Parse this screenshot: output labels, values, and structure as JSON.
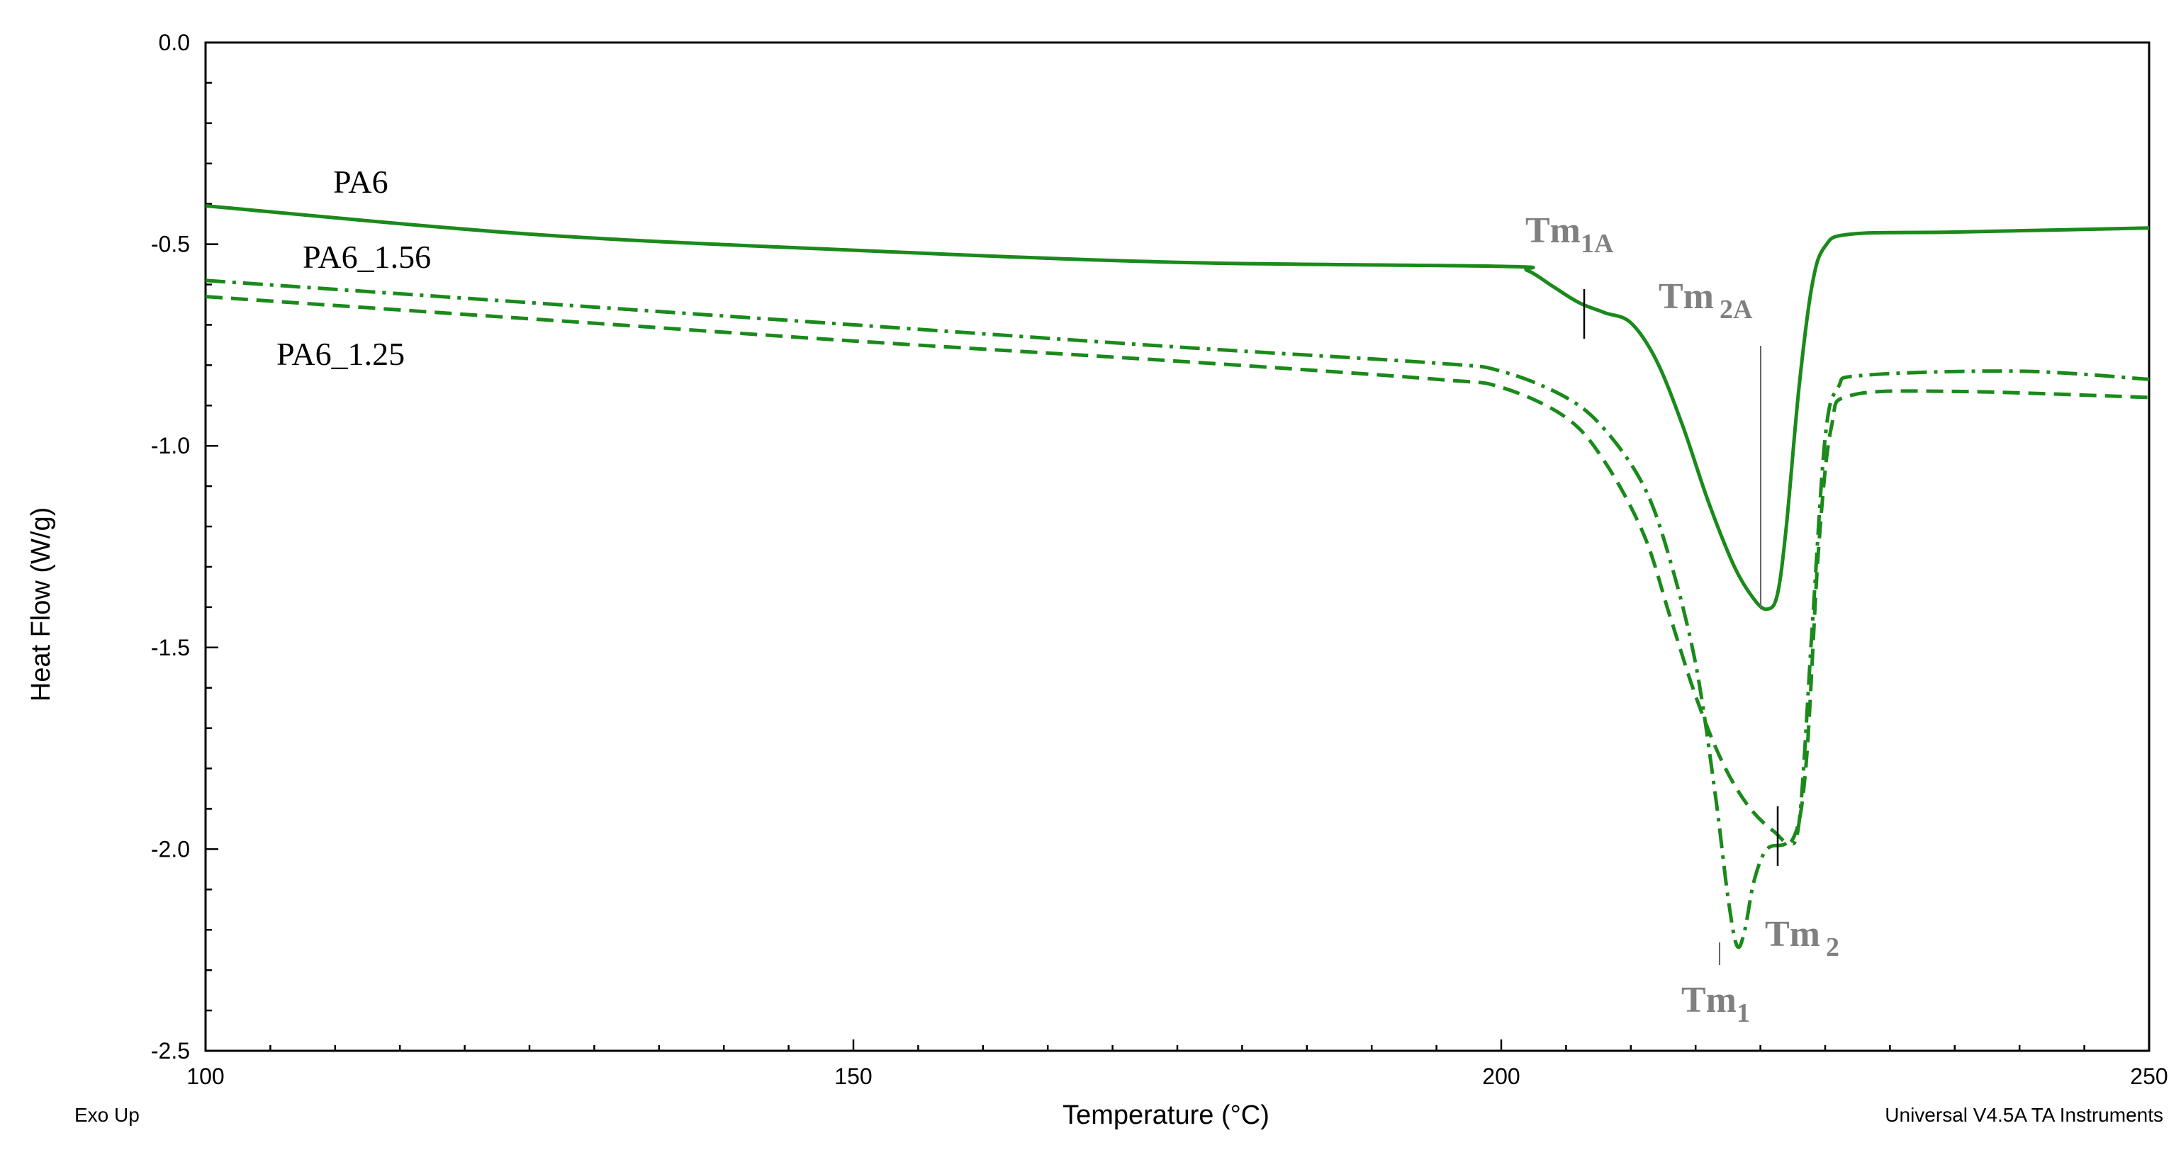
{
  "chart_data": {
    "type": "line",
    "title": "",
    "xlabel": "Temperature (°C)",
    "ylabel": "Heat Flow (W/g)",
    "xlim": [
      100,
      250
    ],
    "ylim": [
      -2.5,
      0.0
    ],
    "x_ticks": [
      100,
      150,
      200,
      250
    ],
    "y_ticks": [
      0.0,
      -0.5,
      -1.0,
      -1.5,
      -2.0,
      -2.5
    ],
    "x_tick_labels": [
      "100",
      "150",
      "200",
      "250"
    ],
    "y_tick_labels": [
      "0.0",
      "-0.5",
      "-1.0",
      "-1.5",
      "-2.0",
      "-2.5"
    ],
    "grid": false,
    "line_color": "#1a8a1a",
    "series": [
      {
        "name": "PA6",
        "style": "solid",
        "points": [
          [
            100,
            -0.405
          ],
          [
            125,
            -0.475
          ],
          [
            150,
            -0.515
          ],
          [
            175,
            -0.545
          ],
          [
            200,
            -0.555
          ],
          [
            202,
            -0.565
          ],
          [
            204,
            -0.605
          ],
          [
            206,
            -0.645
          ],
          [
            208,
            -0.67
          ],
          [
            210,
            -0.695
          ],
          [
            212,
            -0.79
          ],
          [
            214,
            -0.95
          ],
          [
            216,
            -1.14
          ],
          [
            218,
            -1.3
          ],
          [
            219.5,
            -1.38
          ],
          [
            220.5,
            -1.405
          ],
          [
            221.3,
            -1.37
          ],
          [
            222,
            -1.2
          ],
          [
            223,
            -0.85
          ],
          [
            224,
            -0.6
          ],
          [
            225,
            -0.505
          ],
          [
            227,
            -0.475
          ],
          [
            235,
            -0.47
          ],
          [
            250,
            -0.46
          ]
        ]
      },
      {
        "name": "PA6_1.56",
        "style": "dashdot",
        "points": [
          [
            100,
            -0.59
          ],
          [
            125,
            -0.645
          ],
          [
            150,
            -0.7
          ],
          [
            175,
            -0.755
          ],
          [
            195,
            -0.795
          ],
          [
            200,
            -0.815
          ],
          [
            205,
            -0.88
          ],
          [
            208,
            -0.96
          ],
          [
            211,
            -1.1
          ],
          [
            213,
            -1.28
          ],
          [
            215,
            -1.54
          ],
          [
            216.5,
            -1.86
          ],
          [
            217.5,
            -2.12
          ],
          [
            218.2,
            -2.24
          ],
          [
            218.8,
            -2.2
          ],
          [
            219.5,
            -2.08
          ],
          [
            220.5,
            -2.0
          ],
          [
            222,
            -1.985
          ],
          [
            223,
            -1.93
          ],
          [
            224,
            -1.45
          ],
          [
            225,
            -0.98
          ],
          [
            226,
            -0.855
          ],
          [
            228,
            -0.825
          ],
          [
            240,
            -0.815
          ],
          [
            250,
            -0.835
          ]
        ]
      },
      {
        "name": "PA6_1.25",
        "style": "dashed",
        "points": [
          [
            100,
            -0.63
          ],
          [
            125,
            -0.685
          ],
          [
            150,
            -0.74
          ],
          [
            175,
            -0.79
          ],
          [
            195,
            -0.835
          ],
          [
            200,
            -0.855
          ],
          [
            205,
            -0.93
          ],
          [
            208,
            -1.04
          ],
          [
            211,
            -1.22
          ],
          [
            213,
            -1.42
          ],
          [
            215,
            -1.62
          ],
          [
            217,
            -1.78
          ],
          [
            219,
            -1.89
          ],
          [
            221,
            -1.955
          ],
          [
            222.5,
            -1.975
          ],
          [
            223.5,
            -1.8
          ],
          [
            224.5,
            -1.25
          ],
          [
            225.5,
            -0.95
          ],
          [
            227,
            -0.875
          ],
          [
            235,
            -0.865
          ],
          [
            250,
            -0.88
          ]
        ]
      }
    ],
    "annotations": [
      {
        "main": "Tm",
        "sub": "1A"
      },
      {
        "main": "Tm",
        "sub": "2A"
      },
      {
        "main": "Tm",
        "sub": "1"
      },
      {
        "main": "Tm",
        "sub": "2"
      }
    ],
    "footer_left": "Exo Up",
    "footer_right": "Universal V4.5A TA Instruments"
  }
}
